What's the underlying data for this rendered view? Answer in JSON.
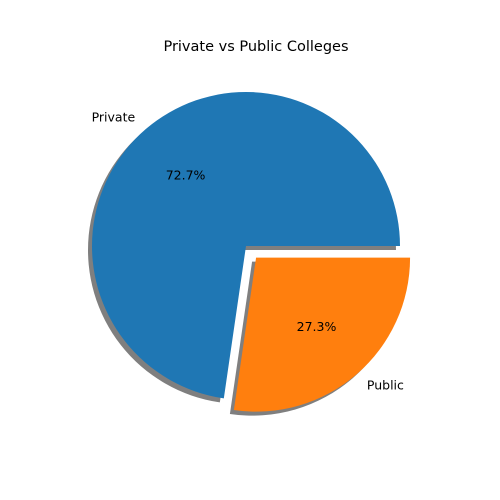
{
  "chart_data": {
    "type": "pie",
    "title": "Private vs Public Colleges",
    "slices": [
      {
        "label": "Private",
        "value": 72.7,
        "pct_label": "72.7%",
        "color": "#1f77b4",
        "explode": 0.0
      },
      {
        "label": "Public",
        "value": 27.3,
        "pct_label": "27.3%",
        "color": "#ff7f0e",
        "explode": 0.1
      }
    ],
    "shadow": true,
    "shadow_color": "#7f7f7f",
    "start_angle_deg": 0,
    "direction": "counterclockwise"
  }
}
